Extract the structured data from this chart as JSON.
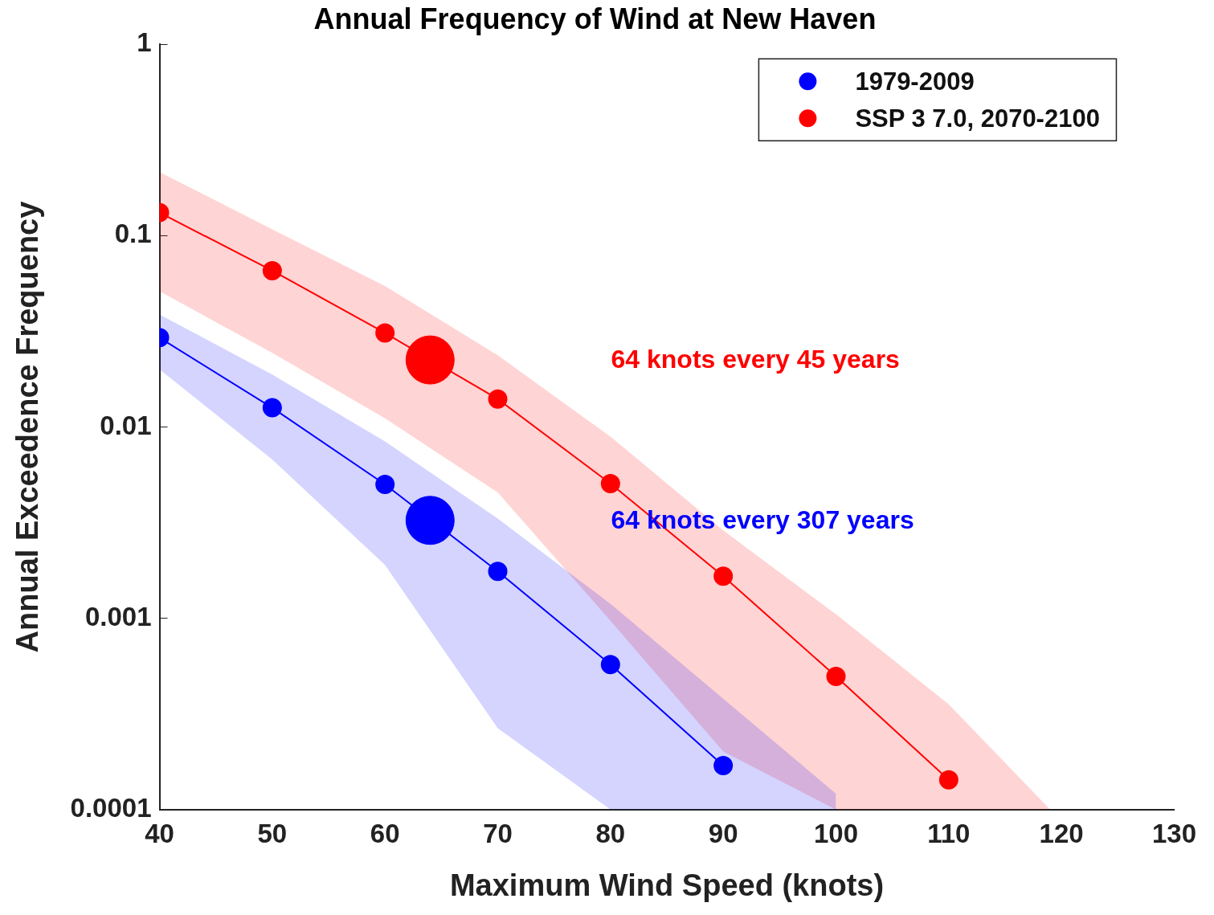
{
  "chart_data": {
    "type": "line",
    "title": "Annual Frequency of Wind at New Haven",
    "xlabel": "Maximum Wind Speed (knots)",
    "ylabel": "Annual Exceedence Frequency",
    "log": "y",
    "xlim": [
      40,
      130
    ],
    "xticks": [
      40,
      50,
      60,
      70,
      80,
      90,
      100,
      110,
      120,
      130
    ],
    "ylim": [
      0.0001,
      1
    ],
    "yticks": [
      0.0001,
      0.001,
      0.01,
      0.1,
      1
    ],
    "grid": false,
    "legend": "top right",
    "marker": "circle",
    "series": [
      {
        "name": "1979-2009",
        "type": "line",
        "color": "#0000ff",
        "x": [
          40,
          50,
          60,
          70,
          80,
          90,
          100
        ],
        "values": [
          0.0293,
          0.0126,
          0.00501,
          0.00176,
          0.000573,
          0.00017,
          null
        ],
        "lower": [
          0.02,
          0.00676,
          0.0019,
          0.000266,
          0.0001,
          0.0001,
          0.0001
        ],
        "upper": [
          0.0387,
          0.0188,
          0.0084,
          0.00332,
          0.00119,
          0.00038,
          0.000121
        ]
      },
      {
        "name": "SSP 3 7.0, 2070-2100",
        "type": "line",
        "color": "#ff0000",
        "x": [
          40,
          50,
          60,
          70,
          80,
          90,
          100,
          110,
          119
        ],
        "values": [
          0.132,
          0.0656,
          0.031,
          0.014,
          0.00506,
          0.00166,
          0.000497,
          0.000143,
          null
        ],
        "lower": [
          0.0512,
          0.0244,
          0.0111,
          0.00455,
          0.00097,
          0.000201,
          0.0001,
          0.0001,
          0.0001
        ],
        "upper": [
          0.215,
          0.108,
          0.0546,
          0.0237,
          0.0089,
          0.00288,
          0.00105,
          0.000355,
          0.0001
        ]
      },
      {
        "type": "scatter",
        "color": "#0000ff",
        "x": [
          64
        ],
        "values": [
          0.00325
        ]
      },
      {
        "type": "scatter",
        "color": "#ff0000",
        "x": [
          64
        ],
        "values": [
          0.0224
        ]
      }
    ],
    "annotations": [
      "64 knots every 307 years",
      "64 knots every 45 years"
    ]
  }
}
